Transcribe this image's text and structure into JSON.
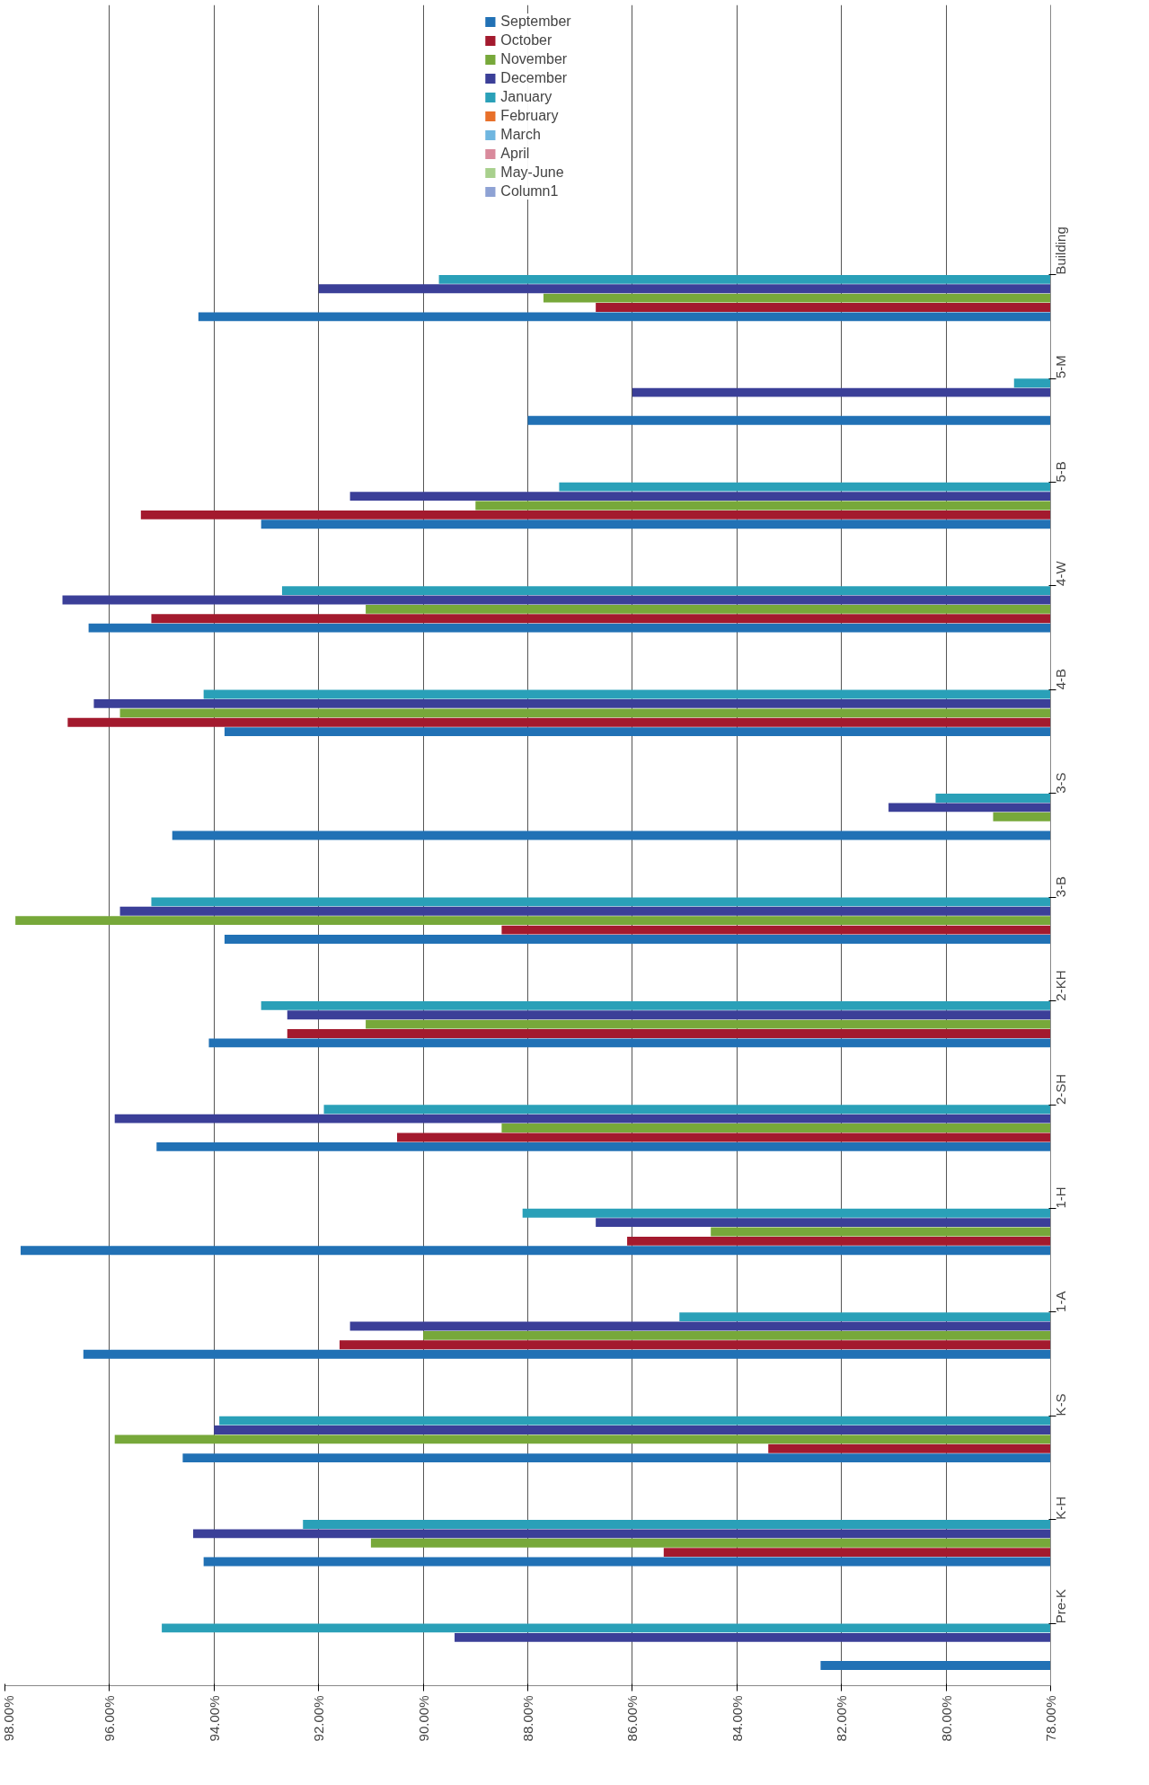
{
  "chart_data": {
    "type": "bar",
    "orientation": "horizontal",
    "categories": [
      "Building",
      "5-M",
      "5-B",
      "4-W",
      "4-B",
      "3-S",
      "3-B",
      "2-KH",
      "2-SH",
      "1-H",
      "1-A",
      "K-S",
      "K-H",
      "Pre-K"
    ],
    "series": [
      {
        "name": "September",
        "color": "#2171b5",
        "values": [
          94.3,
          88.0,
          93.1,
          96.4,
          93.8,
          94.8,
          93.8,
          94.1,
          95.1,
          97.7,
          96.5,
          94.6,
          94.2,
          82.4
        ]
      },
      {
        "name": "October",
        "color": "#a31a2e",
        "values": [
          86.7,
          null,
          95.4,
          95.2,
          96.8,
          null,
          88.5,
          92.6,
          90.5,
          86.1,
          91.6,
          83.4,
          85.4,
          null
        ]
      },
      {
        "name": "November",
        "color": "#77a83a",
        "values": [
          87.7,
          null,
          89.0,
          91.1,
          95.8,
          79.1,
          97.8,
          91.1,
          88.5,
          84.5,
          90.0,
          95.9,
          91.0,
          null
        ]
      },
      {
        "name": "December",
        "color": "#3b3f98",
        "values": [
          92.0,
          86.0,
          91.4,
          96.9,
          96.3,
          81.1,
          95.8,
          92.6,
          95.9,
          86.7,
          91.4,
          94.0,
          94.4,
          89.4
        ]
      },
      {
        "name": "January",
        "color": "#2aa0b8",
        "values": [
          89.7,
          78.7,
          87.4,
          92.7,
          94.2,
          80.2,
          95.2,
          93.1,
          91.9,
          88.1,
          85.1,
          93.9,
          92.3,
          95.0
        ]
      },
      {
        "name": "February",
        "color": "#e8702a",
        "values": [
          null,
          null,
          null,
          null,
          null,
          null,
          null,
          null,
          null,
          null,
          null,
          null,
          null,
          null
        ]
      },
      {
        "name": "March",
        "color": "#6fb6e0",
        "values": [
          null,
          null,
          null,
          null,
          null,
          null,
          null,
          null,
          null,
          null,
          null,
          null,
          null,
          null
        ]
      },
      {
        "name": "April",
        "color": "#d98a9c",
        "values": [
          null,
          null,
          null,
          null,
          null,
          null,
          null,
          null,
          null,
          null,
          null,
          null,
          null,
          null
        ]
      },
      {
        "name": "May-June",
        "color": "#a8d08d",
        "values": [
          null,
          null,
          null,
          null,
          null,
          null,
          null,
          null,
          null,
          null,
          null,
          null,
          null,
          null
        ]
      },
      {
        "name": "Column1",
        "color": "#8ea2d4",
        "values": [
          null,
          null,
          null,
          null,
          null,
          null,
          null,
          null,
          null,
          null,
          null,
          null,
          null,
          null
        ]
      }
    ],
    "xlim": [
      98,
      78
    ],
    "xticks": [
      {
        "value": 98,
        "label": "98.00%"
      },
      {
        "value": 96,
        "label": "96.00%"
      },
      {
        "value": 94,
        "label": "94.00%"
      },
      {
        "value": 92,
        "label": "92.00%"
      },
      {
        "value": 90,
        "label": "90.00%"
      },
      {
        "value": 88,
        "label": "88.00%"
      },
      {
        "value": 86,
        "label": "86.00%"
      },
      {
        "value": 84,
        "label": "84.00%"
      },
      {
        "value": 82,
        "label": "82.00%"
      },
      {
        "value": 80,
        "label": "80.00%"
      },
      {
        "value": 78,
        "label": "78.00%"
      }
    ],
    "grid": "x",
    "legend": "top"
  }
}
